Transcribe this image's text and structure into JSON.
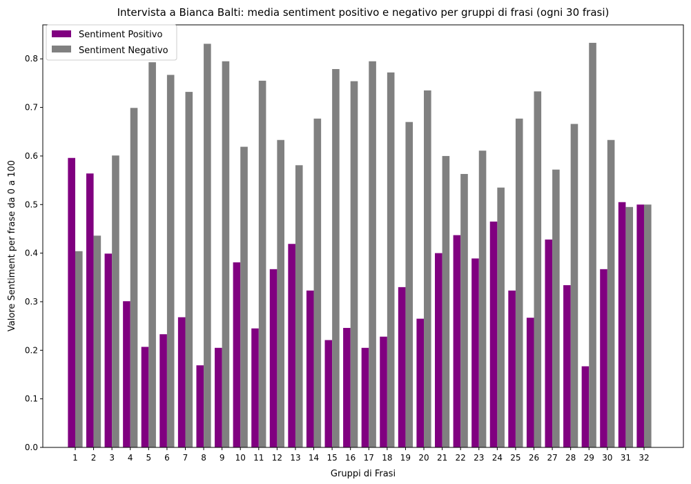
{
  "chart_data": {
    "type": "bar",
    "title": "Intervista a Bianca Balti: media sentiment positivo e negativo per gruppi di frasi (ogni 30 frasi)",
    "xlabel": "Gruppi di Frasi",
    "ylabel": "Valore Sentiment per frase da 0 a 100",
    "categories": [
      "1",
      "2",
      "3",
      "4",
      "5",
      "6",
      "7",
      "8",
      "9",
      "10",
      "11",
      "12",
      "13",
      "14",
      "15",
      "16",
      "17",
      "18",
      "19",
      "20",
      "21",
      "22",
      "23",
      "24",
      "25",
      "26",
      "27",
      "28",
      "29",
      "30",
      "31",
      "32"
    ],
    "yticks": [
      "0.0",
      "0.1",
      "0.2",
      "0.3",
      "0.4",
      "0.5",
      "0.6",
      "0.7",
      "0.8"
    ],
    "ylim": [
      0,
      0.87
    ],
    "grid": false,
    "legend_position": "top-left",
    "series": [
      {
        "name": "Sentiment Positivo",
        "color": "#800080",
        "values": [
          0.596,
          0.564,
          0.399,
          0.301,
          0.207,
          0.233,
          0.268,
          0.169,
          0.205,
          0.381,
          0.245,
          0.367,
          0.419,
          0.323,
          0.221,
          0.246,
          0.205,
          0.228,
          0.33,
          0.265,
          0.4,
          0.437,
          0.389,
          0.465,
          0.323,
          0.267,
          0.428,
          0.334,
          0.167,
          0.367,
          0.505,
          0.5
        ]
      },
      {
        "name": "Sentiment Negativo",
        "color": "#808080",
        "values": [
          0.404,
          0.436,
          0.601,
          0.699,
          0.793,
          0.767,
          0.732,
          0.831,
          0.795,
          0.619,
          0.755,
          0.633,
          0.581,
          0.677,
          0.779,
          0.754,
          0.795,
          0.772,
          0.67,
          0.735,
          0.6,
          0.563,
          0.611,
          0.535,
          0.677,
          0.733,
          0.572,
          0.666,
          0.833,
          0.633,
          0.495,
          0.5
        ]
      }
    ]
  }
}
